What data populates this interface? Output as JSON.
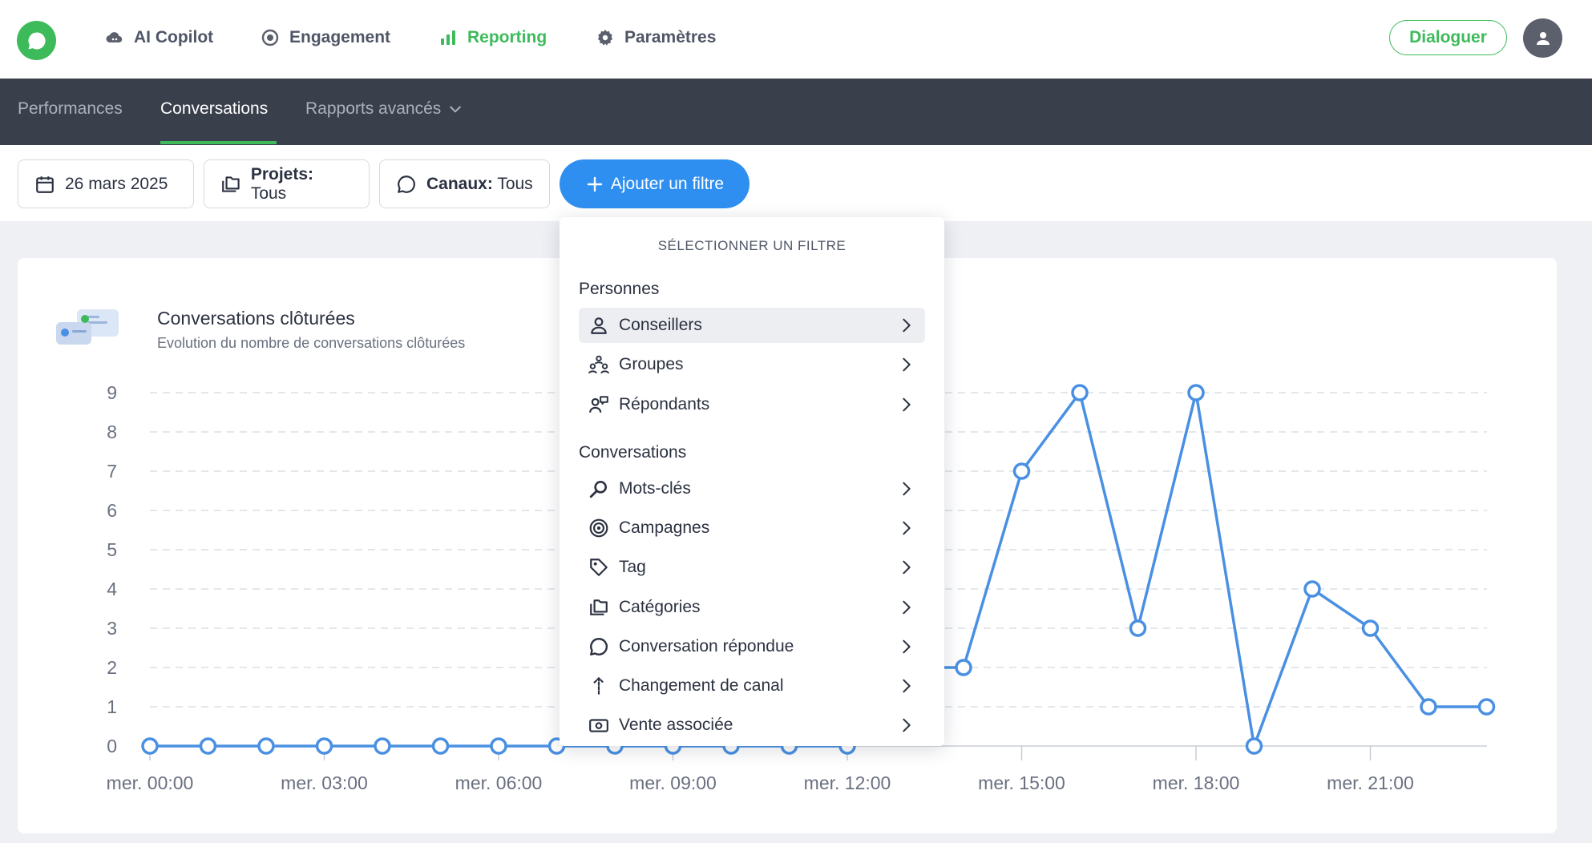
{
  "topnav": {
    "items": [
      {
        "label": "AI Copilot",
        "icon": "cloud-icon"
      },
      {
        "label": "Engagement",
        "icon": "target-icon"
      },
      {
        "label": "Reporting",
        "icon": "bar-chart-icon",
        "active": true
      },
      {
        "label": "Paramètres",
        "icon": "gear-icon"
      }
    ],
    "dialoguer_label": "Dialoguer"
  },
  "subnav": {
    "items": [
      {
        "label": "Performances"
      },
      {
        "label": "Conversations",
        "active": true
      },
      {
        "label": "Rapports avancés",
        "has_dropdown": true
      }
    ]
  },
  "filters": {
    "date": "26 mars 2025",
    "projets_label": "Projets:",
    "projets_value": "Tous",
    "canaux_label": "Canaux:",
    "canaux_value": "Tous",
    "add_label": "Ajouter un filtre"
  },
  "card": {
    "title": "Conversations clôturées",
    "subtitle": "Evolution du nombre de conversations clôturées"
  },
  "dropdown": {
    "header": "SÉLECTIONNER UN FILTRE",
    "group_personnes": "Personnes",
    "group_conversations": "Conversations",
    "personnes": [
      {
        "label": "Conseillers",
        "icon": "user-icon",
        "highlighted": true
      },
      {
        "label": "Groupes",
        "icon": "group-icon"
      },
      {
        "label": "Répondants",
        "icon": "respondent-icon"
      }
    ],
    "conversations": [
      {
        "label": "Mots-clés",
        "icon": "search-icon"
      },
      {
        "label": "Campagnes",
        "icon": "target-icon"
      },
      {
        "label": "Tag",
        "icon": "tag-icon"
      },
      {
        "label": "Catégories",
        "icon": "folders-icon"
      },
      {
        "label": "Conversation répondue",
        "icon": "chat-bubble-icon"
      },
      {
        "label": "Changement de canal",
        "icon": "channel-change-icon"
      },
      {
        "label": "Vente associée",
        "icon": "sale-icon"
      }
    ]
  },
  "colors": {
    "brand_green": "#3dbb5b",
    "accent_blue": "#2f8ff0",
    "subnav_bg": "#3a3f4c",
    "series_line": "#4a90e2"
  },
  "chart_data": {
    "type": "line",
    "title": "Conversations clôturées",
    "subtitle": "Evolution du nombre de conversations clôturées",
    "ylim": [
      0,
      9
    ],
    "yticks": [
      0,
      1,
      2,
      3,
      4,
      5,
      6,
      7,
      8,
      9
    ],
    "xtick_labels": [
      "mer. 00:00",
      "mer. 03:00",
      "mer. 06:00",
      "mer. 09:00",
      "mer. 12:00",
      "mer. 15:00",
      "mer. 18:00",
      "mer. 21:00"
    ],
    "xtick_hours": [
      0,
      3,
      6,
      9,
      12,
      15,
      18,
      21
    ],
    "grid": true,
    "series": [
      {
        "x_hours": [
          0,
          1,
          2,
          3,
          4,
          5,
          6,
          7,
          8,
          9,
          10,
          11,
          12,
          13,
          14,
          15,
          16,
          17,
          18,
          19,
          20,
          21,
          22,
          23
        ],
        "values": [
          0,
          0,
          0,
          0,
          0,
          0,
          0,
          0,
          0,
          0,
          0,
          0,
          0,
          2,
          2,
          7,
          9,
          3,
          9,
          0,
          4,
          3,
          1,
          1
        ]
      }
    ]
  }
}
